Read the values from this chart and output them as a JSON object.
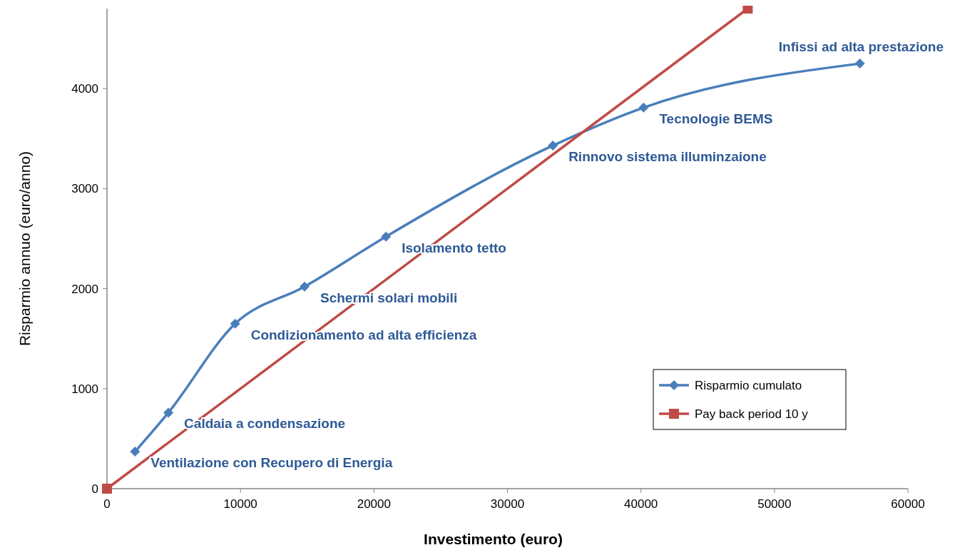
{
  "chart_data": {
    "type": "line",
    "xlabel": "Investimento (euro)",
    "ylabel": "Risparmio annuo (euro/anno)",
    "xlim": [
      0,
      60000
    ],
    "xticks": [
      0,
      10000,
      20000,
      30000,
      40000,
      50000,
      60000
    ],
    "ylim": [
      0,
      4800
    ],
    "yticks": [
      0,
      1000,
      2000,
      3000,
      4000
    ],
    "grid": false,
    "legend": "bottom right",
    "line_style": "solid",
    "series": [
      {
        "name": "Risparmio cumulato",
        "color": "#4a7ebb",
        "marker": "diamond",
        "x": [
          2100,
          4600,
          9600,
          14800,
          20900,
          33400,
          40200,
          56400
        ],
        "values": [
          370,
          760,
          1650,
          2020,
          2520,
          3430,
          3810,
          4250
        ]
      },
      {
        "name": "Pay back period 10 y",
        "color": "#be4b48",
        "marker": "square",
        "x": [
          0,
          48000
        ],
        "values": [
          0,
          4800
        ]
      }
    ],
    "annotations": [
      {
        "text": "Ventilazione con Recupero di Energia",
        "x": 2100,
        "y": 370
      },
      {
        "text": "Caldaia a condensazione",
        "x": 4600,
        "y": 760
      },
      {
        "text": "Condizionamento ad alta efficienza",
        "x": 9600,
        "y": 1650
      },
      {
        "text": "Schermi solari mobili",
        "x": 14800,
        "y": 2020
      },
      {
        "text": "Isolamento tetto",
        "x": 20900,
        "y": 2520
      },
      {
        "text": "Rinnovo sistema illuminzaione",
        "x": 33400,
        "y": 3430
      },
      {
        "text": "Tecnologie BEMS",
        "x": 40200,
        "y": 3810
      },
      {
        "text": "Infissi ad alta prestazione",
        "x": 56400,
        "y": 4250
      }
    ]
  }
}
